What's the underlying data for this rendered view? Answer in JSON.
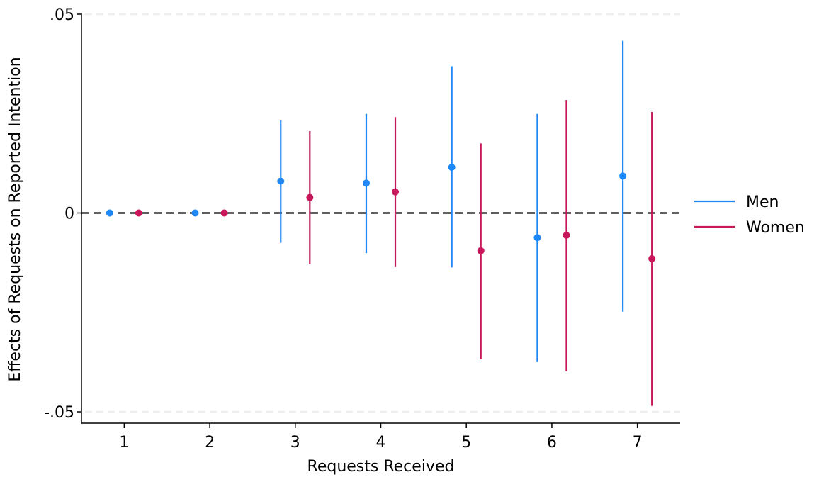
{
  "chart_data": {
    "type": "scatter",
    "title": "",
    "xlabel": "Requests Received",
    "ylabel": "Effects of Requests on Reported Intention",
    "xlim": [
      0.5,
      7.5
    ],
    "ylim": [
      -0.053,
      0.05
    ],
    "x_ticks": [
      1,
      2,
      3,
      4,
      5,
      6,
      7
    ],
    "x_tick_labels": [
      "1",
      "2",
      "3",
      "4",
      "5",
      "6",
      "7"
    ],
    "y_ticks": [
      -0.05,
      0,
      0.05
    ],
    "y_tick_labels": [
      "-.05",
      "0",
      ".05"
    ],
    "grid": "horizontal dashed at y ticks",
    "reference_line": 0,
    "legend_position": "right",
    "colors": {
      "Men": "#1f88f5",
      "Women": "#c9175b",
      "reference": "#000000",
      "grid": "#eeeeee"
    },
    "series": [
      {
        "name": "Men",
        "x": [
          1,
          2,
          3,
          4,
          5,
          6,
          7
        ],
        "estimate": [
          0.0,
          0.0,
          0.008,
          0.0075,
          0.0115,
          -0.0062,
          0.0093
        ],
        "ci_low": [
          0.0,
          0.0,
          -0.0075,
          -0.0101,
          -0.0137,
          -0.0375,
          -0.0248
        ],
        "ci_high": [
          0.0,
          0.0,
          0.0233,
          0.0249,
          0.0369,
          0.0249,
          0.0433
        ]
      },
      {
        "name": "Women",
        "x": [
          1,
          2,
          3,
          4,
          5,
          6,
          7
        ],
        "estimate": [
          0.0,
          0.0,
          0.0039,
          0.0053,
          -0.0095,
          -0.0056,
          -0.0115
        ],
        "ci_low": [
          0.0,
          0.0,
          -0.0129,
          -0.0136,
          -0.0368,
          -0.0398,
          -0.0485
        ],
        "ci_high": [
          0.0,
          0.0,
          0.0206,
          0.0241,
          0.0175,
          0.0284,
          0.0254
        ]
      }
    ]
  }
}
